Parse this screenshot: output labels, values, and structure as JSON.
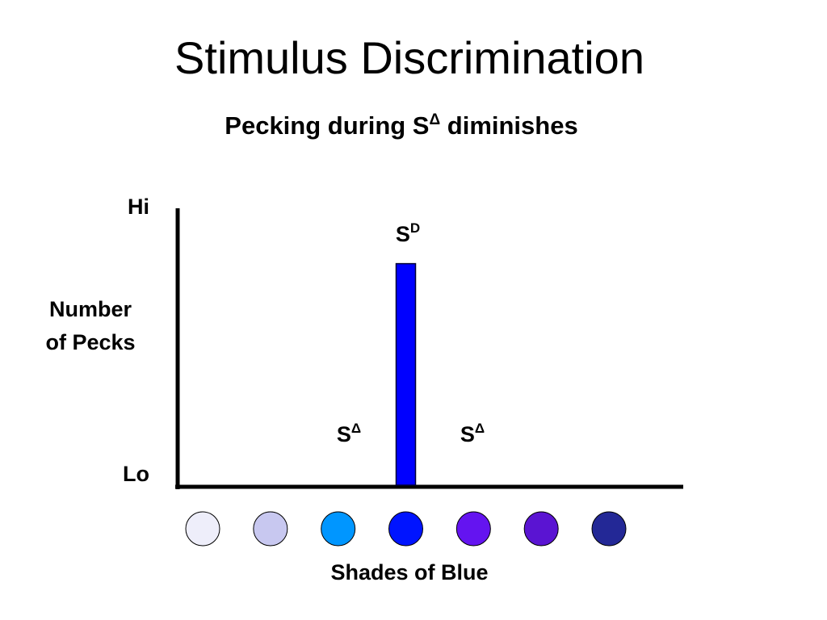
{
  "chart_data": {
    "type": "bar",
    "title": "Stimulus Discrimination",
    "subtitle": {
      "text": "Pecking during S",
      "sup": "Δ",
      "rest": " diminishes"
    },
    "y_label": [
      "Number",
      "of Pecks"
    ],
    "x_label": "Shades of Blue",
    "categories": [
      null,
      null,
      null,
      null,
      null,
      null,
      null
    ],
    "category_colors": [
      "#eeeefa",
      "#c8c8f0",
      "#0096ff",
      "#0014ff",
      "#6414f0",
      "#5a14d2",
      "#232896"
    ],
    "values": [
      0,
      0,
      0,
      0.8,
      0,
      0,
      0
    ],
    "color": "#0000ff",
    "ylim": [
      0,
      1
    ],
    "yticks": [
      {
        "value": 0,
        "label": "Lo"
      },
      {
        "value": 1,
        "label": "Hi"
      }
    ],
    "grid": false,
    "annotations": [
      {
        "text": "S",
        "sup": "D"
      },
      {
        "text": "S",
        "sup": "Δ"
      },
      {
        "text": "S",
        "sup": "Δ"
      }
    ]
  }
}
